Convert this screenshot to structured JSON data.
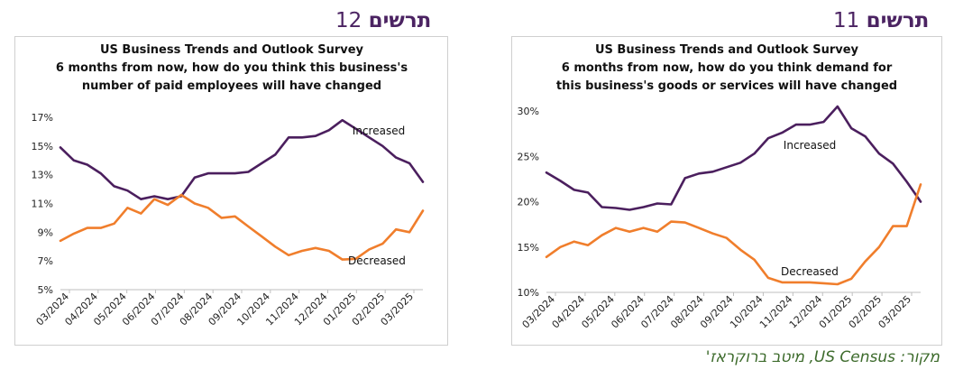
{
  "headings": {
    "left": {
      "word": "תרשים",
      "number": "12"
    },
    "right": {
      "word": "תרשים",
      "number": "11"
    }
  },
  "source": "מקור: US Census, מיטב ברוקראז'",
  "colors": {
    "increased": "#4b1f5e",
    "decreased": "#f07e2c",
    "heading": "#4b2362",
    "source": "#3d6b2c"
  },
  "chart_data": [
    {
      "type": "line",
      "title": [
        "US Business Trends and Outlook Survey",
        "6 months from now, how do you think this business's",
        "number of paid employees will have changed"
      ],
      "x_ticks": [
        "03/2024",
        "04/2024",
        "05/2024",
        "06/2024",
        "07/2024",
        "08/2024",
        "09/2024",
        "10/2024",
        "11/2024",
        "12/2024",
        "01/2025",
        "02/2025",
        "03/2025"
      ],
      "y_ticks": [
        "17%",
        "15%",
        "13%",
        "11%",
        "9%",
        "7%",
        "5%"
      ],
      "ylim": [
        5,
        17
      ],
      "series": [
        {
          "name": "Increased",
          "values": [
            14.9,
            14.0,
            13.7,
            13.1,
            12.2,
            11.9,
            11.3,
            11.5,
            11.3,
            11.5,
            12.8,
            13.1,
            13.1,
            13.1,
            13.2,
            13.8,
            14.4,
            15.6,
            15.6,
            15.7,
            16.1,
            16.8,
            16.2,
            15.6,
            15.0,
            14.2,
            13.8,
            12.5
          ]
        },
        {
          "name": "Decreased",
          "values": [
            8.4,
            8.9,
            9.3,
            9.3,
            9.6,
            10.7,
            10.3,
            11.3,
            10.9,
            11.6,
            11.0,
            10.7,
            10.0,
            10.1,
            9.4,
            8.7,
            8.0,
            7.4,
            7.7,
            7.9,
            7.7,
            7.1,
            7.15,
            7.8,
            8.2,
            9.2,
            9.0,
            10.5
          ]
        }
      ]
    },
    {
      "type": "line",
      "title": [
        "US Business Trends and Outlook Survey",
        "6 months from now, how do you think demand for",
        "this business's goods or services will have changed"
      ],
      "x_ticks": [
        "03/2024",
        "04/2024",
        "05/2024",
        "06/2024",
        "07/2024",
        "08/2024",
        "09/2024",
        "10/2024",
        "11/2024",
        "12/2024",
        "01/2025",
        "02/2025",
        "03/2025"
      ],
      "y_ticks": [
        "30%",
        "25%",
        "20%",
        "15%",
        "10%"
      ],
      "ylim": [
        10,
        30
      ],
      "series": [
        {
          "name": "Increased",
          "values": [
            23.2,
            22.3,
            21.3,
            21.0,
            19.4,
            19.3,
            19.1,
            19.4,
            19.8,
            19.7,
            22.6,
            23.1,
            23.3,
            23.8,
            24.3,
            25.3,
            27.0,
            27.6,
            28.5,
            28.5,
            28.8,
            30.5,
            28.1,
            27.2,
            25.3,
            24.2,
            22.2,
            20.0
          ]
        },
        {
          "name": "Decreased",
          "values": [
            13.9,
            15.0,
            15.6,
            15.2,
            16.3,
            17.1,
            16.7,
            17.1,
            16.7,
            17.8,
            17.7,
            17.1,
            16.5,
            16.0,
            14.7,
            13.6,
            11.6,
            11.1,
            11.1,
            11.1,
            11.0,
            10.9,
            11.5,
            13.4,
            15.0,
            17.3,
            17.3,
            21.9
          ]
        }
      ]
    }
  ]
}
